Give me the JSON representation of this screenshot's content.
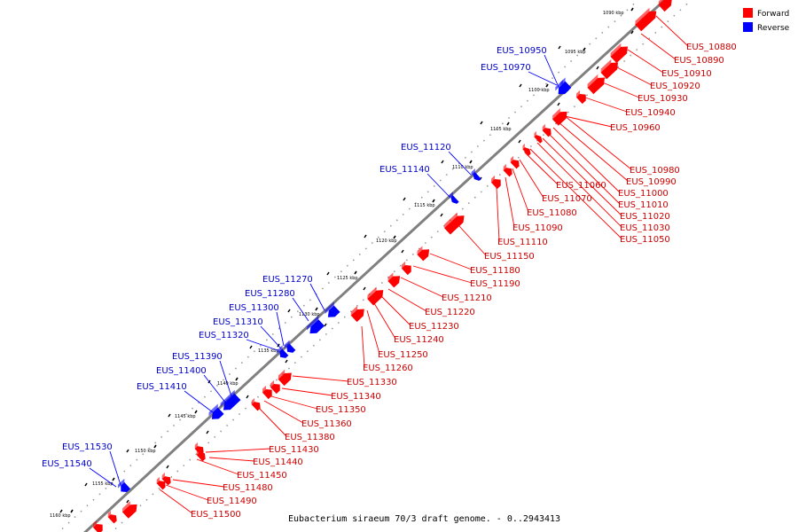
{
  "caption": "Eubacterium siraeum 70/3 draft genome. - 0..2943413",
  "legend": [
    {
      "label": "Forward",
      "color": "#ff0000"
    },
    {
      "label": "Reverse",
      "color": "#0000ff"
    }
  ],
  "colors": {
    "forward": "#ff0000",
    "reverse": "#0000ff",
    "forward_label": "#cc0000",
    "reverse_label": "#0000cc",
    "backbone": "#808080"
  },
  "ticks": [
    "1090 kbp",
    "1095 kbp",
    "1100 kbp",
    "1105 kbp",
    "1110 kbp",
    "1115 kbp",
    "1120 kbp",
    "1125 kbp",
    "1130 kbp",
    "1135 kbp",
    "1140 kbp",
    "1145 kbp",
    "1150 kbp",
    "1155 kbp",
    "1160 kbp"
  ],
  "forward_genes": [
    "EUS_10880",
    "EUS_10890",
    "EUS_10910",
    "EUS_10920",
    "EUS_10930",
    "EUS_10940",
    "EUS_10960",
    "EUS_10980",
    "EUS_10990",
    "EUS_11000",
    "EUS_11010",
    "EUS_11020",
    "EUS_11030",
    "EUS_11050",
    "EUS_11060",
    "EUS_11070",
    "EUS_11080",
    "EUS_11090",
    "EUS_11110",
    "EUS_11150",
    "EUS_11180",
    "EUS_11190",
    "EUS_11210",
    "EUS_11220",
    "EUS_11230",
    "EUS_11240",
    "EUS_11250",
    "EUS_11260",
    "EUS_11330",
    "EUS_11340",
    "EUS_11350",
    "EUS_11360",
    "EUS_11380",
    "EUS_11430",
    "EUS_11440",
    "EUS_11450",
    "EUS_11480",
    "EUS_11490",
    "EUS_11500"
  ],
  "reverse_genes": [
    "EUS_10950",
    "EUS_10970",
    "EUS_11120",
    "EUS_11140",
    "EUS_11270",
    "EUS_11280",
    "EUS_11300",
    "EUS_11310",
    "EUS_11320",
    "EUS_11390",
    "EUS_11400",
    "EUS_11410",
    "EUS_11530",
    "EUS_11540"
  ]
}
